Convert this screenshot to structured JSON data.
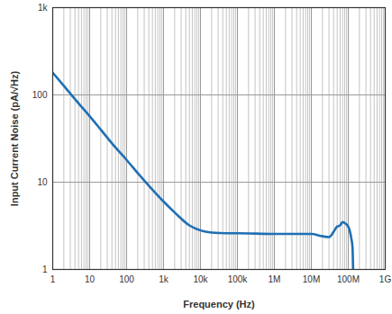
{
  "chart_data": {
    "type": "line",
    "x_label": "Frequency (Hz)",
    "y_label": "Input Current Noise (pA/√Hz)",
    "log": true,
    "grid": true,
    "color": "#1f6fb4",
    "x": [
      1,
      2,
      5,
      10,
      20,
      50,
      100,
      200,
      500,
      1000,
      2000,
      5000,
      10000,
      20000,
      50000,
      100000,
      1000000,
      10000000,
      20000000,
      30000000,
      40000000,
      50000000,
      60000000,
      70000000,
      80000000,
      100000000,
      120000000,
      130000000,
      135000000
    ],
    "values": [
      180,
      127,
      80,
      57,
      40,
      25,
      18,
      12.7,
      8.2,
      6,
      4.5,
      3.2,
      2.8,
      2.65,
      2.6,
      2.6,
      2.55,
      2.55,
      2.4,
      2.35,
      2.7,
      3.1,
      3.2,
      3.5,
      3.4,
      3.1,
      2.3,
      1.8,
      1
    ],
    "xlim": [
      1,
      1000000000
    ],
    "ylim": [
      1,
      1000
    ],
    "xticks": [
      1,
      10,
      100,
      {
        "value": 1000,
        "label": "1k"
      },
      {
        "value": 10000,
        "label": "10k"
      },
      {
        "value": 100000,
        "label": "100k"
      },
      {
        "value": 1000000,
        "label": "1M"
      },
      {
        "value": 10000000,
        "label": "10M"
      },
      {
        "value": 100000000,
        "label": "100M"
      },
      {
        "value": 1000000000,
        "label": "1G"
      }
    ],
    "yticks": [
      1,
      10,
      100,
      {
        "value": 1000,
        "label": "1k"
      }
    ]
  }
}
